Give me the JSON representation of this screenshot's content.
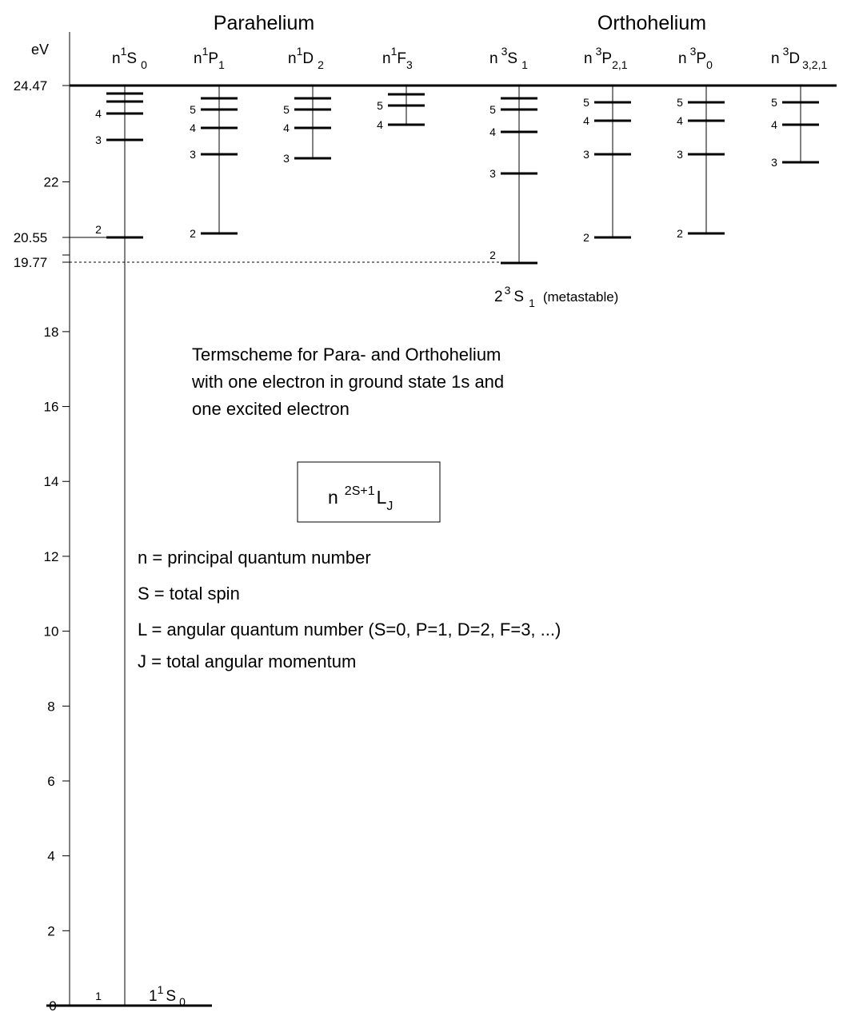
{
  "groups": {
    "parahelium": "Parahelium",
    "orthohelium": "Orthohelium"
  },
  "axis": {
    "unit": "eV",
    "ylim": [
      0,
      25
    ],
    "ticks": [
      {
        "value": 0,
        "label": "0"
      },
      {
        "value": 2,
        "label": "2"
      },
      {
        "value": 4,
        "label": "4"
      },
      {
        "value": 6,
        "label": "6"
      },
      {
        "value": 8,
        "label": "8"
      },
      {
        "value": 10,
        "label": "10"
      },
      {
        "value": 12,
        "label": "12"
      },
      {
        "value": 14,
        "label": "14"
      },
      {
        "value": 16,
        "label": "16"
      },
      {
        "value": 18,
        "label": "18"
      },
      {
        "value": 19.77,
        "label": "19.77"
      },
      {
        "value": 20.55,
        "label": "20.55"
      },
      {
        "value": 22,
        "label": "22"
      },
      {
        "value": 24.47,
        "label": "24.47"
      }
    ]
  },
  "ionization": {
    "value": 24.47
  },
  "series": [
    {
      "id": "n1S0",
      "main": "n",
      "sup": "1",
      "letter": "S",
      "sub": "0",
      "energies": {
        "1": 0,
        "2": 20.55,
        "3": 22.92,
        "4": 23.67,
        "5": 23.97,
        "6": 24.17
      },
      "shown_labels": [
        "2",
        "3",
        "4"
      ]
    },
    {
      "id": "n1P1",
      "main": "n",
      "sup": "1",
      "letter": "P",
      "sub": "1",
      "energies": {
        "2": 20.65,
        "3": 23.07,
        "4": 23.73,
        "5": 24.02,
        "6": 24.22
      },
      "shown_labels": [
        "2",
        "3",
        "4",
        "5"
      ]
    },
    {
      "id": "n1D2",
      "main": "n",
      "sup": "1",
      "letter": "D",
      "sub": "2",
      "energies": {
        "3": 22.95,
        "4": 23.73,
        "5": 24.02,
        "6": 24.22
      },
      "shown_labels": [
        "3",
        "4",
        "5"
      ]
    },
    {
      "id": "n1F3",
      "main": "n",
      "sup": "1",
      "letter": "F",
      "sub": "3",
      "energies": {
        "4": 23.77,
        "5": 24.05,
        "6": 24.25
      },
      "shown_labels": [
        "4",
        "5"
      ]
    },
    {
      "id": "n3S1",
      "main": "n",
      "sup": "3",
      "letter": "S",
      "sub": "1",
      "energies": {
        "2": 19.77,
        "3": 22.22,
        "4": 23.37,
        "5": 23.87,
        "6": 24.12
      },
      "shown_labels": [
        "2",
        "3",
        "4",
        "5"
      ]
    },
    {
      "id": "n3P21",
      "main": "n",
      "sup": "3",
      "letter": "P",
      "sub": "2,1",
      "energies": {
        "2": 20.55,
        "3": 23.07,
        "4": 23.67,
        "5": 24.02
      },
      "shown_labels": [
        "2",
        "3",
        "4",
        "5"
      ]
    },
    {
      "id": "n3P0",
      "main": "n",
      "sup": "3",
      "letter": "P",
      "sub": "0",
      "energies": {
        "2": 20.65,
        "3": 23.07,
        "4": 23.67,
        "5": 24.02
      },
      "shown_labels": [
        "2",
        "3",
        "4",
        "5"
      ]
    },
    {
      "id": "n3D321",
      "main": "n",
      "sup": "3",
      "letter": "D",
      "sub": "3,2,1",
      "energies": {
        "3": 22.95,
        "4": 23.62,
        "5": 24.02
      },
      "shown_labels": [
        "3",
        "4",
        "5"
      ]
    }
  ],
  "ground_state": {
    "n": "1",
    "main": "1",
    "sup": "1",
    "letter": "S",
    "sub": "0"
  },
  "metastable": {
    "main": "2",
    "sup": "3",
    "letter": "S",
    "sub": "1",
    "note": "(metastable)"
  },
  "caption": {
    "line1": "Termscheme for Para- and Orthohelium",
    "line2": "with one electron in ground state 1s and",
    "line3": "one excited electron"
  },
  "notation_box": {
    "main": "n",
    "sup": "2S+1",
    "letter": "L",
    "sub": "J"
  },
  "legend": {
    "n": "n = principal quantum number",
    "s": "S = total spin",
    "l": "L = angular quantum number (S=0, P=1, D=2, F=3, ...)",
    "j": "J = total angular momentum"
  }
}
